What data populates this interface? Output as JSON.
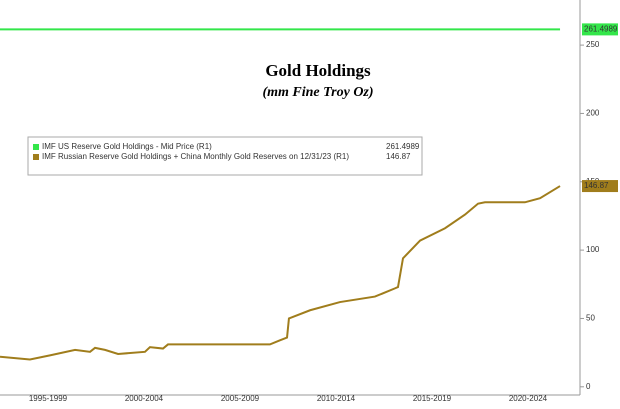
{
  "chart_data": {
    "type": "line",
    "title": "Gold Holdings",
    "subtitle": "(mm Fine Troy Oz)",
    "x": [
      1995,
      1996.56,
      1997.6,
      1998.91,
      1999.69,
      1999.95,
      2000.47,
      2001.15,
      2002.55,
      2002.81,
      2003.49,
      2003.75,
      2009.06,
      2009.58,
      2009.95,
      2010.05,
      2011.15,
      2012.71,
      2014.53,
      2015.57,
      2015.73,
      2015.99,
      2016.88,
      2018.18,
      2019.22,
      2019.9,
      2020.26,
      2022.34,
      2023.13,
      2024.17
    ],
    "series": [
      {
        "name": "IMF US Reserve Gold Holdings - Mid Price (R1)",
        "color": "#33e64a",
        "values": [
          261.5,
          261.5,
          261.5,
          261.5,
          261.5,
          261.5,
          261.5,
          261.5,
          261.5,
          261.5,
          261.5,
          261.5,
          261.5,
          261.5,
          261.5,
          261.5,
          261.5,
          261.5,
          261.5,
          261.5,
          261.5,
          261.5,
          261.5,
          261.5,
          261.5,
          261.5,
          261.5,
          261.5,
          261.5,
          261.4989
        ]
      },
      {
        "name": "IMF Russian Reserve Gold Holdings + China Monthly Gold Reserves on 12/31/23 (R1)",
        "color": "#a07d1c",
        "values": [
          22,
          20,
          23,
          27,
          25.6,
          28.5,
          27,
          24,
          25.6,
          29,
          28,
          31,
          31,
          34,
          36,
          50,
          56,
          62,
          66,
          72,
          73,
          94,
          107,
          116,
          126,
          134,
          135,
          135,
          138,
          146.87
        ]
      }
    ],
    "xlim": [
      1995,
      2025.21
    ],
    "xticks": [
      {
        "value": 1997.5,
        "label": "1995-1999"
      },
      {
        "value": 2002.5,
        "label": "2000-2004"
      },
      {
        "value": 2007.5,
        "label": "2005-2009"
      },
      {
        "value": 2012.5,
        "label": "2010-2014"
      },
      {
        "value": 2017.5,
        "label": "2015-2019"
      },
      {
        "value": 2022.5,
        "label": "2020-2024"
      }
    ],
    "ylim": [
      -6,
      283
    ],
    "yticks": [
      0,
      50,
      100,
      150,
      200,
      250
    ]
  }
}
